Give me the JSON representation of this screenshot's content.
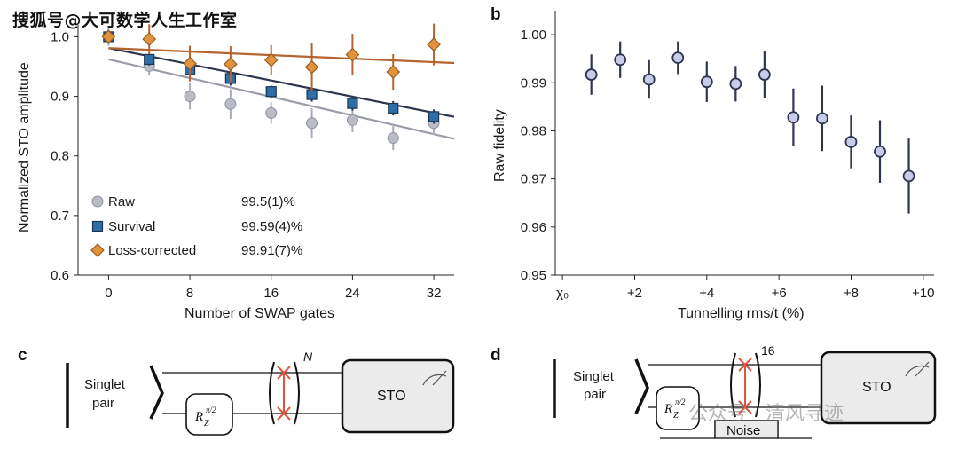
{
  "watermark_top": "搜狐号@大可数学人生工作室",
  "watermark_bottom": "公众号 · 清风寻迹",
  "colors": {
    "raw": "#b9bcc6",
    "survival": "#2f6fa8",
    "loss": "#e0933a",
    "fit_raw": "#9a9ca8",
    "fit_survival": "#2e3550",
    "fit_loss": "#b5642f",
    "panel_b_marker": "#c9cce8",
    "panel_b_edge": "#2e3550",
    "swap_red": "#e0533f",
    "sto_fill": "#ebebeb"
  },
  "panel_a": {
    "label": "a",
    "ylabel": "Normalized STO amplitude",
    "xlabel": "Number of SWAP gates",
    "chart_data": {
      "type": "scatter",
      "xlim": [
        -3,
        34
      ],
      "ylim": [
        0.6,
        1.02
      ],
      "xticks": [
        0,
        8,
        16,
        24,
        32
      ],
      "yticks": [
        0.6,
        0.7,
        0.8,
        0.9,
        1.0
      ],
      "xtick_labels": [
        "0",
        "8",
        "16",
        "24",
        "32"
      ],
      "ytick_labels": [
        "0.6",
        "0.7",
        "0.8",
        "0.9",
        "1.0"
      ],
      "series": [
        {
          "name": "Raw",
          "marker": "circle",
          "x": [
            0,
            4,
            8,
            12,
            16,
            20,
            24,
            28,
            32
          ],
          "y": [
            1.0,
            0.951,
            0.9,
            0.887,
            0.872,
            0.855,
            0.86,
            0.83,
            0.855
          ],
          "err": [
            0.015,
            0.016,
            0.022,
            0.025,
            0.018,
            0.025,
            0.02,
            0.02,
            0.02
          ],
          "fit": [
            [
              0,
              0.962
            ],
            [
              38,
              0.813
            ]
          ],
          "fidelity": "99.5(1)%"
        },
        {
          "name": "Survival",
          "marker": "square",
          "x": [
            0,
            4,
            8,
            12,
            16,
            20,
            24,
            28,
            32
          ],
          "y": [
            1.0,
            0.962,
            0.945,
            0.93,
            0.908,
            0.903,
            0.888,
            0.88,
            0.866
          ],
          "err": [
            0.008,
            0.01,
            0.012,
            0.012,
            0.01,
            0.012,
            0.012,
            0.012,
            0.012
          ],
          "fit": [
            [
              0,
              0.981
            ],
            [
              38,
              0.852
            ]
          ],
          "fidelity": "99.59(4)%"
        },
        {
          "name": "Loss-corrected",
          "marker": "diamond",
          "x": [
            0,
            4,
            8,
            12,
            16,
            20,
            24,
            28,
            32
          ],
          "y": [
            1.0,
            0.996,
            0.955,
            0.954,
            0.961,
            0.949,
            0.97,
            0.941,
            0.987
          ],
          "err": [
            0.012,
            0.025,
            0.03,
            0.03,
            0.025,
            0.04,
            0.035,
            0.03,
            0.035
          ],
          "fit": [
            [
              0,
              0.981
            ],
            [
              38,
              0.953
            ]
          ],
          "fidelity": "99.91(7)%"
        }
      ]
    }
  },
  "panel_b": {
    "label": "b",
    "ylabel": "Raw fidelity",
    "xlabel": "Tunnelling rms/t (%)",
    "chart_data": {
      "type": "scatter",
      "xlim": [
        -0.2,
        10.3
      ],
      "ylim": [
        0.95,
        1.005
      ],
      "xticks": [
        0,
        2,
        4,
        6,
        8,
        10
      ],
      "xtick_labels": [
        "χ₀",
        "+2",
        "+4",
        "+6",
        "+8",
        "+10"
      ],
      "yticks": [
        0.95,
        0.96,
        0.97,
        0.98,
        0.99,
        1.0
      ],
      "ytick_labels": [
        "0.95",
        "0.96",
        "0.97",
        "0.98",
        "0.99",
        "1.00"
      ],
      "series": [
        {
          "name": "Raw fidelity",
          "x": [
            0.8,
            1.6,
            2.4,
            3.2,
            4.0,
            4.8,
            5.6,
            6.4,
            7.2,
            8.0,
            8.8,
            9.6
          ],
          "y": [
            0.9917,
            0.9948,
            0.9907,
            0.9952,
            0.9902,
            0.9898,
            0.9917,
            0.9828,
            0.9826,
            0.9777,
            0.9757,
            0.9706
          ],
          "err": [
            0.0042,
            0.0038,
            0.004,
            0.0034,
            0.0042,
            0.0037,
            0.0048,
            0.006,
            0.0068,
            0.0055,
            0.0065,
            0.0078
          ]
        }
      ]
    }
  },
  "panel_c": {
    "label": "c",
    "singlet_line1": "Singlet",
    "singlet_line2": "pair",
    "rz_base": "R",
    "rz_sub": "Z",
    "rz_sup": "π/2",
    "repeat_label": "N",
    "sto_label": "STO"
  },
  "panel_d": {
    "label": "d",
    "singlet_line1": "Singlet",
    "singlet_line2": "pair",
    "rz_base": "R",
    "rz_sub": "Z",
    "rz_sup": "π/2",
    "repeat_label": "16",
    "sto_label": "STO",
    "noise_label": "Noise"
  }
}
